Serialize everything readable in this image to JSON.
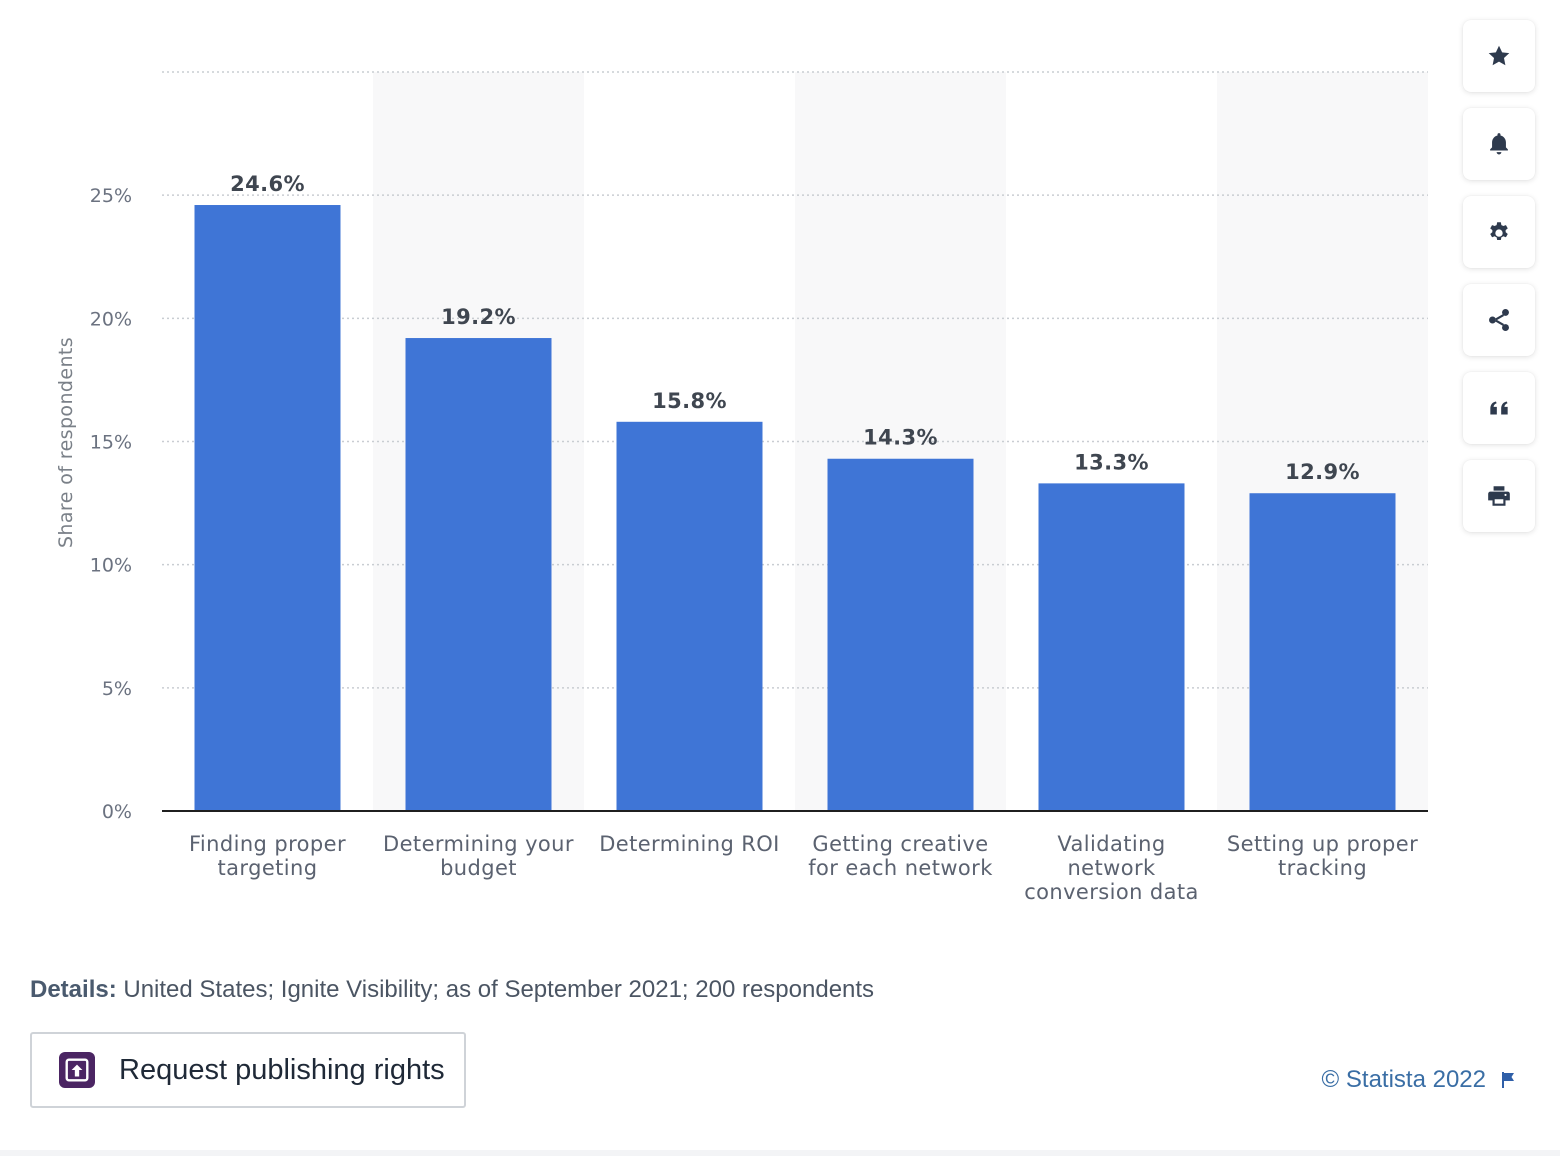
{
  "chart_data": {
    "type": "bar",
    "categories": [
      [
        "Finding proper",
        "targeting"
      ],
      [
        "Determining your",
        "budget"
      ],
      [
        "Determining ROI"
      ],
      [
        "Getting creative",
        "for each network"
      ],
      [
        "Validating",
        "network",
        "conversion data"
      ],
      [
        "Setting up proper",
        "tracking"
      ]
    ],
    "values": [
      24.6,
      19.2,
      15.8,
      14.3,
      13.3,
      12.9
    ],
    "value_labels": [
      "24.6%",
      "19.2%",
      "15.8%",
      "14.3%",
      "13.3%",
      "12.9%"
    ],
    "ylabel": "Share of respondents",
    "ylim": [
      0,
      30
    ],
    "yticks": [
      0,
      5,
      10,
      15,
      20,
      25
    ],
    "ytick_labels": [
      "0%",
      "5%",
      "10%",
      "15%",
      "20%",
      "25%"
    ],
    "grid": true,
    "bar_color": "#3f75d6"
  },
  "toolbar": [
    {
      "name": "favorite-star-icon"
    },
    {
      "name": "notification-bell-icon"
    },
    {
      "name": "settings-gear-icon"
    },
    {
      "name": "share-icon"
    },
    {
      "name": "cite-quote-icon"
    },
    {
      "name": "print-icon"
    }
  ],
  "details": {
    "label": "Details:",
    "text": " United States; Ignite Visibility; as of September 2021; 200 respondents"
  },
  "publish_button": {
    "label": "Request publishing rights"
  },
  "copyright": {
    "text": "© Statista 2022"
  }
}
